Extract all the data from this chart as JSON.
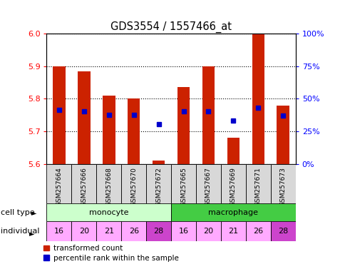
{
  "title": "GDS3554 / 1557466_at",
  "samples": [
    "GSM257664",
    "GSM257666",
    "GSM257668",
    "GSM257670",
    "GSM257672",
    "GSM257665",
    "GSM257667",
    "GSM257669",
    "GSM257671",
    "GSM257673"
  ],
  "bar_values": [
    5.9,
    5.885,
    5.81,
    5.8,
    5.61,
    5.835,
    5.9,
    5.68,
    6.0,
    5.78
  ],
  "blue_values": [
    5.765,
    5.762,
    5.75,
    5.75,
    5.723,
    5.762,
    5.762,
    5.733,
    5.772,
    5.748
  ],
  "y_min": 5.6,
  "y_max": 6.0,
  "bar_color": "#cc2200",
  "blue_color": "#0000cc",
  "bar_width": 0.5,
  "yticks": [
    5.6,
    5.7,
    5.8,
    5.9,
    6.0
  ],
  "pct_ticks": [
    "0%",
    "25%",
    "50%",
    "75%",
    "100%"
  ],
  "pct_vals": [
    0.0,
    0.25,
    0.5,
    0.75,
    1.0
  ],
  "cell_type_data": [
    {
      "label": "monocyte",
      "start": 0,
      "end": 5,
      "color": "#ccffcc"
    },
    {
      "label": "macrophage",
      "start": 5,
      "end": 10,
      "color": "#44cc44"
    }
  ],
  "individuals": [
    "16",
    "20",
    "21",
    "26",
    "28",
    "16",
    "20",
    "21",
    "26",
    "28"
  ],
  "ind_dark_indices": [
    4,
    9
  ],
  "ind_light_color": "#ffaaff",
  "ind_dark_color": "#cc44cc",
  "sample_box_color": "#d8d8d8",
  "legend_red": "transformed count",
  "legend_blue": "percentile rank within the sample"
}
